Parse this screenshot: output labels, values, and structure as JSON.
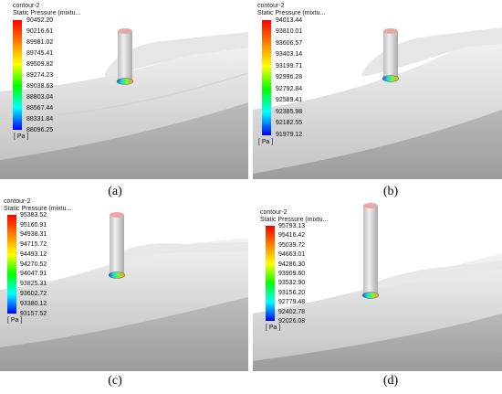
{
  "panels": [
    {
      "id": "a",
      "title": "contour-2",
      "subtitle": "Static Pressure (mixtu...",
      "ticks": [
        "90452.20",
        "90216.61",
        "89981.02",
        "89745.41",
        "89509.82",
        "89274.23",
        "89038.63",
        "88803.04",
        "88567.44",
        "88331.84",
        "88096.25"
      ],
      "unit": "[ Pa ]",
      "caption": "(a)"
    },
    {
      "id": "b",
      "title": "contour-2",
      "subtitle": "Static Pressure (mixtu...",
      "ticks": [
        "94013.44",
        "93810.01",
        "93606.57",
        "93403.14",
        "93199.71",
        "92996.28",
        "92792.84",
        "92589.41",
        "92385.98",
        "92182.55",
        "91979.12"
      ],
      "unit": "[ Pa ]",
      "caption": "(b)"
    },
    {
      "id": "c",
      "title": "contour-2",
      "subtitle": "Static Pressure (mixtu...",
      "ticks": [
        "95383.52",
        "95160.91",
        "94938.31",
        "94715.72",
        "94493.12",
        "94270.52",
        "94047.91",
        "93825.31",
        "93602.72",
        "93380.12",
        "93157.52"
      ],
      "unit": "[ Pa ]",
      "caption": "(c)"
    },
    {
      "id": "d",
      "title": "contour-2",
      "subtitle": "Static Pressure (mixtu...",
      "ticks": [
        "95793.13",
        "95416.42",
        "95039.72",
        "94663.01",
        "94286.30",
        "93909.60",
        "93532.90",
        "93156.20",
        "92779.48",
        "92402.78",
        "92026.08"
      ],
      "unit": "[ Pa ]",
      "caption": "(d)"
    }
  ],
  "colors": {
    "colormap": [
      "#ff0000",
      "#ff8000",
      "#ffff00",
      "#00ff00",
      "#00ffff",
      "#0000ff"
    ],
    "surface_light": "#f2f2f2",
    "surface_dark": "#b9b9b9",
    "cylinder_top": "#e9a7a7"
  }
}
